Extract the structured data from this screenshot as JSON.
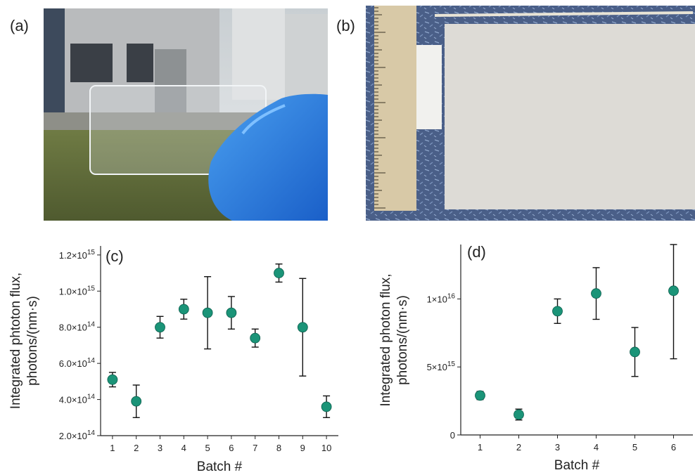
{
  "panels": {
    "a": {
      "label": "(a)"
    },
    "b": {
      "label": "(b)"
    }
  },
  "chart_data": [
    {
      "panel_label": "(c)",
      "type": "scatter",
      "xlabel": "Batch #",
      "ylabel_line1": "Integrated phtoton flux,",
      "ylabel_line2": "photons/(nm·s)",
      "x": [
        1,
        2,
        3,
        4,
        5,
        6,
        7,
        8,
        9,
        10
      ],
      "y": [
        510000000000000.0,
        390000000000000.0,
        800000000000000.0,
        900000000000000.0,
        880000000000000.0,
        880000000000000.0,
        740000000000000.0,
        1100000000000000.0,
        800000000000000.0,
        360000000000000.0
      ],
      "yerr_low": [
        470000000000000.0,
        300000000000000.0,
        740000000000000.0,
        845000000000000.0,
        680000000000000.0,
        790000000000000.0,
        690000000000000.0,
        1050000000000000.0,
        530000000000000.0,
        300000000000000.0
      ],
      "yerr_high": [
        550000000000000.0,
        480000000000000.0,
        860000000000000.0,
        955000000000000.0,
        1080000000000000.0,
        970000000000000.0,
        790000000000000.0,
        1150000000000000.0,
        1070000000000000.0,
        420000000000000.0
      ],
      "xlim": [
        0.5,
        10.5
      ],
      "ylim": [
        200000000000000.0,
        1250000000000000.0
      ],
      "xticks": [
        1,
        2,
        3,
        4,
        5,
        6,
        7,
        8,
        9,
        10
      ],
      "yticks": [
        200000000000000.0,
        400000000000000.0,
        600000000000000.0,
        800000000000000.0,
        1000000000000000.0,
        1200000000000000.0
      ],
      "ytick_labels": [
        {
          "m": "2.0×10",
          "e": "14"
        },
        {
          "m": "4.0×10",
          "e": "14"
        },
        {
          "m": "6.0×10",
          "e": "14"
        },
        {
          "m": "8.0×10",
          "e": "14"
        },
        {
          "m": "1.0×10",
          "e": "15"
        },
        {
          "m": "1.2×10",
          "e": "15"
        }
      ],
      "marker_color": "#1b9478",
      "grid": false
    },
    {
      "panel_label": "(d)",
      "type": "scatter",
      "xlabel": "Batch #",
      "ylabel_line1": "Integrated photon flux,",
      "ylabel_line2": "photons/(nm·s)",
      "x": [
        1,
        2,
        3,
        4,
        5,
        6
      ],
      "y": [
        2900000000000000.0,
        1500000000000000.0,
        9100000000000000.0,
        1.04e+16,
        6100000000000000.0,
        1.06e+16
      ],
      "yerr_low": [
        2600000000000000.0,
        1100000000000000.0,
        8200000000000000.0,
        8500000000000000.0,
        4300000000000000.0,
        5600000000000000.0
      ],
      "yerr_high": [
        3200000000000000.0,
        1900000000000000.0,
        1e+16,
        1.23e+16,
        7900000000000000.0,
        1.4e+16
      ],
      "xlim": [
        0.5,
        6.5
      ],
      "ylim": [
        0,
        1.4e+16
      ],
      "xticks": [
        1,
        2,
        3,
        4,
        5,
        6
      ],
      "yticks": [
        0,
        5000000000000000.0,
        1e+16
      ],
      "ytick_labels": [
        {
          "m": "0",
          "e": ""
        },
        {
          "m": "5×10",
          "e": "15"
        },
        {
          "m": "1×10",
          "e": "16"
        }
      ],
      "marker_color": "#1b9478",
      "grid": false
    }
  ]
}
